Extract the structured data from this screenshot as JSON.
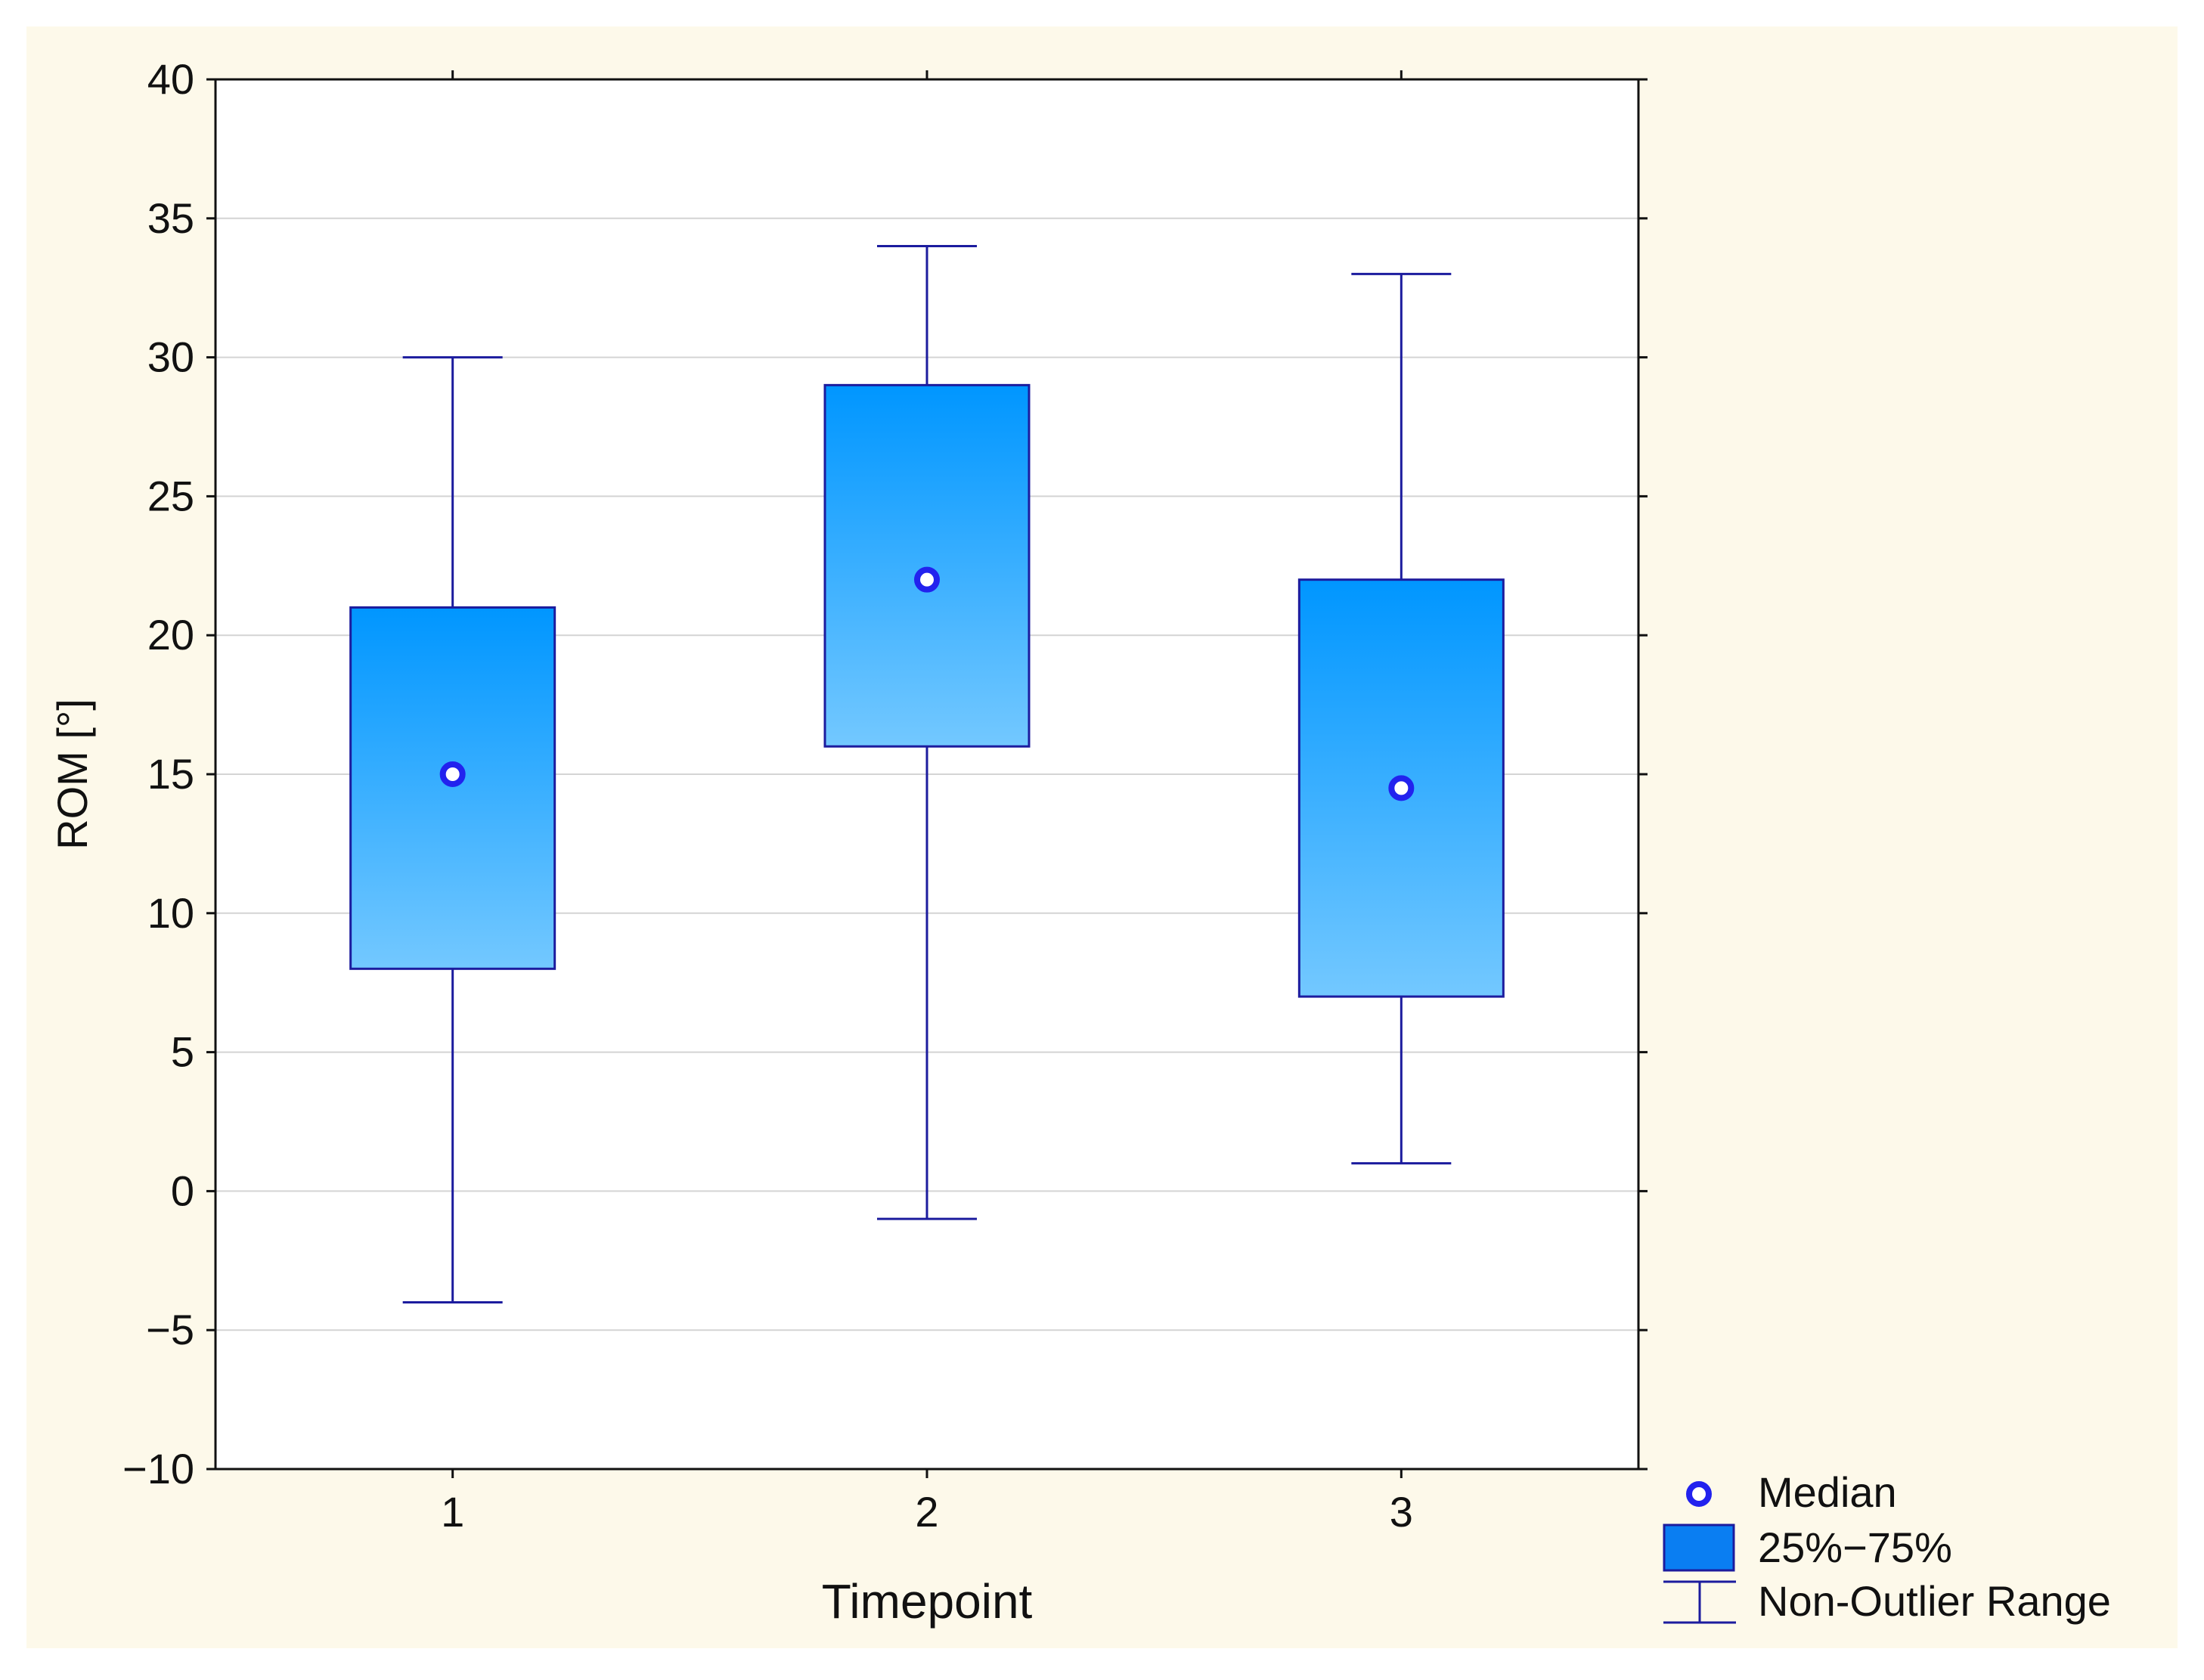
{
  "colors": {
    "page_background": "#ffffff",
    "chart_background": "#fdf9ea",
    "plot_background": "#ffffff",
    "axis": "#111111",
    "grid": "#d4d4d4",
    "whisker": "#1c1c9e",
    "box_top": "#0096ff",
    "box_bottom": "#73c8ff",
    "box_edge": "#1c1c9e",
    "median_marker": "#2222ee",
    "legend_box": "#0a7ef2"
  },
  "chart_data": {
    "type": "box",
    "title": "",
    "xlabel": "Timepoint",
    "ylabel": "ROM [°]",
    "ylim": [
      -10,
      40
    ],
    "yticks": [
      -10,
      -5,
      0,
      5,
      10,
      15,
      20,
      25,
      30,
      35,
      40
    ],
    "ytick_labels": [
      "−10",
      "−5",
      "0",
      "5",
      "10",
      "15",
      "20",
      "25",
      "30",
      "35",
      "40"
    ],
    "categories": [
      "1",
      "2",
      "3"
    ],
    "grid": true,
    "legend_position": "bottom-right, outside plot",
    "legend": [
      {
        "label": "Median",
        "marker": "circle"
      },
      {
        "label": "25%−75%",
        "marker": "box"
      },
      {
        "label": "Non-Outlier Range",
        "marker": "whisker"
      }
    ],
    "series": [
      {
        "category": "1",
        "min": -4,
        "q1": 8,
        "median": 15,
        "q3": 21,
        "max": 30
      },
      {
        "category": "2",
        "min": -1,
        "q1": 16,
        "median": 22,
        "q3": 29,
        "max": 34
      },
      {
        "category": "3",
        "min": 1,
        "q1": 7,
        "median": 14.5,
        "q3": 22,
        "max": 33
      }
    ]
  }
}
